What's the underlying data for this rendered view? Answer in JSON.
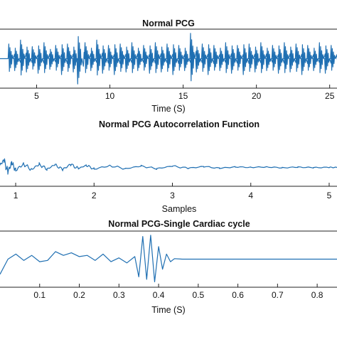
{
  "chart_data": [
    {
      "type": "line",
      "title": "Normal PCG",
      "xlabel": "Time (S)",
      "ylabel": "",
      "xlim": [
        2.5,
        25.5
      ],
      "ylim": [
        -1,
        1
      ],
      "x_ticks": [
        "5",
        "10",
        "15",
        "20",
        "25"
      ],
      "line_color": "#1f6fb2",
      "series": [
        {
          "description_values": "heart-sound bursts (S1/S2) roughly every 0.8 s around a zero baseline",
          "x": [
            3.2,
            3.6,
            4.0,
            4.4,
            4.8,
            5.2,
            5.6,
            6.0,
            6.4,
            6.8,
            7.2,
            7.6,
            7.9,
            8.4,
            8.8,
            9.2,
            9.6,
            10.0,
            10.4,
            10.8,
            11.2,
            11.6,
            12.0,
            12.4,
            12.8,
            13.2,
            13.6,
            14.0,
            14.4,
            14.8,
            15.2,
            15.6,
            16.0,
            16.4,
            16.8,
            17.2,
            17.6,
            18.0,
            18.4,
            18.8,
            19.2,
            19.6,
            20.0,
            20.4,
            20.8,
            21.2,
            21.6,
            22.0,
            22.4,
            22.8,
            23.2,
            23.6,
            24.0,
            24.4,
            24.8,
            25.2
          ],
          "y": [
            0.55,
            -0.45,
            0.7,
            -0.5,
            0.45,
            -0.55,
            0.6,
            -0.4,
            0.5,
            -0.6,
            0.55,
            -0.5,
            -0.95,
            0.6,
            -0.45,
            0.7,
            -0.55,
            0.5,
            -0.6,
            0.55,
            -0.5,
            0.6,
            -0.45,
            0.5,
            -0.55,
            0.6,
            -0.5,
            0.55,
            -0.6,
            0.5,
            -0.45,
            0.95,
            -0.5,
            0.55,
            -0.6,
            0.5,
            -0.45,
            0.6,
            -0.55,
            0.5,
            -0.6,
            0.55,
            -0.5,
            0.6,
            -0.45,
            0.5,
            -0.55,
            0.6,
            -0.5,
            0.55,
            -0.6,
            0.5,
            -0.45,
            0.6,
            -0.55,
            0.5
          ]
        }
      ]
    },
    {
      "type": "line",
      "title": "Normal PCG Autocorrelation Function",
      "xlabel": "Samples",
      "ylabel": "",
      "xlim": [
        0.8,
        5.1
      ],
      "ylim": [
        -1,
        1
      ],
      "x_ticks": [
        "1",
        "2",
        "3",
        "4",
        "5"
      ],
      "line_color": "#1f6fb2",
      "series": [
        {
          "description_values": "decaying oscillatory autocorrelation",
          "x": [
            0.8,
            0.85,
            0.9,
            0.95,
            1.0,
            1.1,
            1.2,
            1.3,
            1.4,
            1.5,
            1.6,
            1.7,
            1.8,
            1.9,
            2.0,
            2.2,
            2.4,
            2.6,
            2.8,
            3.0,
            3.2,
            3.4,
            3.6,
            3.8,
            4.0,
            4.2,
            4.4,
            4.6,
            4.8,
            5.0,
            5.1
          ],
          "y": [
            0.3,
            0.9,
            -0.5,
            0.6,
            -0.3,
            0.45,
            -0.2,
            0.4,
            -0.15,
            0.35,
            -0.2,
            0.4,
            -0.1,
            0.3,
            -0.15,
            0.25,
            -0.1,
            0.2,
            -0.1,
            0.2,
            -0.05,
            0.15,
            -0.05,
            0.1,
            0.05,
            0.1,
            0.0,
            0.08,
            0.02,
            0.05,
            0.04
          ]
        }
      ]
    },
    {
      "type": "line",
      "title": "Normal PCG-Single Cardiac cycle",
      "xlabel": "Time (S)",
      "ylabel": "",
      "xlim": [
        0.0,
        0.85
      ],
      "ylim": [
        -1,
        1
      ],
      "x_ticks": [
        "0.1",
        "0.2",
        "0.3",
        "0.4",
        "0.5",
        "0.6",
        "0.7",
        "0.8"
      ],
      "line_color": "#1f6fb2",
      "series": [
        {
          "description_values": "single cardiac cycle waveform with large oscillation near 0.36-0.40 s",
          "x": [
            0.0,
            0.02,
            0.04,
            0.06,
            0.08,
            0.1,
            0.12,
            0.14,
            0.16,
            0.18,
            0.2,
            0.22,
            0.24,
            0.26,
            0.28,
            0.3,
            0.32,
            0.34,
            0.35,
            0.36,
            0.37,
            0.38,
            0.39,
            0.4,
            0.41,
            0.42,
            0.43,
            0.44,
            0.46,
            0.5,
            0.6,
            0.7,
            0.8,
            0.85
          ],
          "y": [
            -0.6,
            0.0,
            0.2,
            -0.05,
            0.15,
            -0.1,
            -0.05,
            0.3,
            0.15,
            0.25,
            0.1,
            0.15,
            -0.05,
            0.2,
            -0.1,
            0.05,
            -0.15,
            0.1,
            -0.7,
            0.9,
            -0.8,
            0.95,
            -0.9,
            0.5,
            -0.4,
            0.2,
            -0.1,
            0.02,
            0.0,
            0.0,
            0.0,
            0.0,
            0.0,
            0.0
          ]
        }
      ]
    }
  ]
}
